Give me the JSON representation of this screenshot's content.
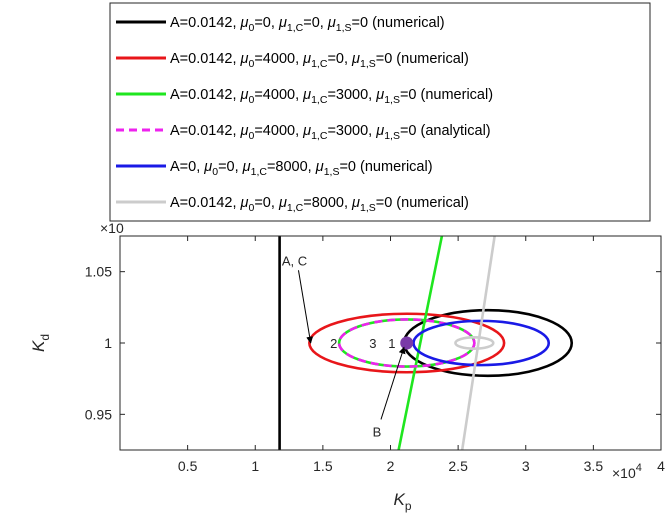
{
  "chart_data": {
    "type": "line",
    "xlabel": {
      "base": "K",
      "sub": "p"
    },
    "ylabel": {
      "base": "K",
      "sub": "d"
    },
    "xlim": [
      0,
      40000
    ],
    "ylim": [
      0.925,
      1.075
    ],
    "x_ticks": [
      5000,
      10000,
      15000,
      20000,
      25000,
      30000,
      35000,
      40000
    ],
    "x_tick_labels": [
      "0.5",
      "1",
      "1.5",
      "2",
      "2.5",
      "3",
      "3.5",
      "4"
    ],
    "y_ticks": [
      0.95,
      1.0,
      1.05
    ],
    "y_tick_labels": [
      "0.95",
      "1",
      "1.05"
    ],
    "x_exponent": {
      "base": "×10",
      "exp": "4"
    },
    "y_exponent": "×10",
    "grid": false,
    "legend_position": "top",
    "legend": [
      {
        "color": "#000000",
        "dashed": false,
        "parts": [
          {
            "t": "A=0.0142, "
          },
          {
            "t": "μ",
            "i": true
          },
          {
            "t": "0",
            "s": true
          },
          {
            "t": "=0, "
          },
          {
            "t": "μ",
            "i": true
          },
          {
            "t": "1,C",
            "s": true
          },
          {
            "t": "=0, "
          },
          {
            "t": "μ",
            "i": true
          },
          {
            "t": "1,S",
            "s": true
          },
          {
            "t": "=0 (numerical)"
          }
        ]
      },
      {
        "color": "#e8161a",
        "dashed": false,
        "parts": [
          {
            "t": "A=0.0142, "
          },
          {
            "t": "μ",
            "i": true
          },
          {
            "t": "0",
            "s": true
          },
          {
            "t": "=4000, "
          },
          {
            "t": "μ",
            "i": true
          },
          {
            "t": "1,C",
            "s": true
          },
          {
            "t": "=0, "
          },
          {
            "t": "μ",
            "i": true
          },
          {
            "t": "1,S",
            "s": true
          },
          {
            "t": "=0 (numerical)"
          }
        ]
      },
      {
        "color": "#1fe61f",
        "dashed": false,
        "parts": [
          {
            "t": "A=0.0142, "
          },
          {
            "t": "μ",
            "i": true
          },
          {
            "t": "0",
            "s": true
          },
          {
            "t": "=4000, "
          },
          {
            "t": "μ",
            "i": true
          },
          {
            "t": "1,C",
            "s": true
          },
          {
            "t": "=3000, "
          },
          {
            "t": "μ",
            "i": true
          },
          {
            "t": "1,S",
            "s": true
          },
          {
            "t": "=0 (numerical)"
          }
        ]
      },
      {
        "color": "#ee22ee",
        "dashed": true,
        "parts": [
          {
            "t": "A=0.0142, "
          },
          {
            "t": "μ",
            "i": true
          },
          {
            "t": "0",
            "s": true
          },
          {
            "t": "=4000, "
          },
          {
            "t": "μ",
            "i": true
          },
          {
            "t": "1,C",
            "s": true
          },
          {
            "t": "=3000, "
          },
          {
            "t": "μ",
            "i": true
          },
          {
            "t": "1,S",
            "s": true
          },
          {
            "t": "=0 (analytical)"
          }
        ]
      },
      {
        "color": "#1a1ae6",
        "dashed": false,
        "parts": [
          {
            "t": "A=0, "
          },
          {
            "t": "μ",
            "i": true
          },
          {
            "t": "0",
            "s": true
          },
          {
            "t": "=0, "
          },
          {
            "t": "μ",
            "i": true
          },
          {
            "t": "1,C",
            "s": true
          },
          {
            "t": "=8000, "
          },
          {
            "t": "μ",
            "i": true
          },
          {
            "t": "1,S",
            "s": true
          },
          {
            "t": "=0 (numerical)"
          }
        ]
      },
      {
        "color": "#cccccc",
        "dashed": false,
        "parts": [
          {
            "t": "A=0.0142, "
          },
          {
            "t": "μ",
            "i": true
          },
          {
            "t": "0",
            "s": true
          },
          {
            "t": "=0, "
          },
          {
            "t": "μ",
            "i": true
          },
          {
            "t": "1,C",
            "s": true
          },
          {
            "t": "=8000, "
          },
          {
            "t": "μ",
            "i": true
          },
          {
            "t": "1,S",
            "s": true
          },
          {
            "t": "=0 (numerical)"
          }
        ]
      }
    ],
    "series": [
      {
        "id": "black-vertical",
        "color": "#000000",
        "dashed": false,
        "x": [
          11800,
          11800
        ],
        "y": [
          0.925,
          1.075
        ]
      },
      {
        "id": "black-closed",
        "color": "#000000",
        "dashed": false,
        "ellipse": {
          "cx": 27200,
          "cy": 1.0,
          "rx": 6200,
          "ry": 0.023
        }
      },
      {
        "id": "red-closed",
        "color": "#e8161a",
        "dashed": false,
        "ellipse": {
          "cx": 21200,
          "cy": 1.0,
          "rx": 7200,
          "ry": 0.0205
        }
      },
      {
        "id": "green-line",
        "color": "#1fe61f",
        "dashed": false,
        "x": [
          20600,
          23800
        ],
        "y": [
          0.925,
          1.075
        ]
      },
      {
        "id": "green-closed",
        "color": "#1fe61f",
        "dashed": false,
        "ellipse": {
          "cx": 21200,
          "cy": 1.0,
          "rx": 5000,
          "ry": 0.0165
        }
      },
      {
        "id": "magenta-closed",
        "color": "#ee22ee",
        "dashed": true,
        "ellipse": {
          "cx": 21200,
          "cy": 1.0,
          "rx": 5000,
          "ry": 0.0165
        }
      },
      {
        "id": "blue-closed",
        "color": "#1a1ae6",
        "dashed": false,
        "ellipse": {
          "cx": 26700,
          "cy": 1.0,
          "rx": 5000,
          "ry": 0.0155
        }
      },
      {
        "id": "gray-line",
        "color": "#cccccc",
        "dashed": false,
        "x": [
          25300,
          27700
        ],
        "y": [
          0.925,
          1.075
        ]
      },
      {
        "id": "gray-closed",
        "color": "#cccccc",
        "dashed": false,
        "ellipse": {
          "cx": 26200,
          "cy": 1.0,
          "rx": 1400,
          "ry": 0.004
        }
      }
    ],
    "point": {
      "x": 21200,
      "y": 1.0,
      "color": "#7a3aa8"
    },
    "annotations": [
      {
        "text": "A, C",
        "x": 12900,
        "y": 1.058,
        "arrow_to": [
          14100,
          1.0
        ]
      },
      {
        "text": "2",
        "x": 15800,
        "y": 1.0
      },
      {
        "text": "3",
        "x": 18700,
        "y": 1.0
      },
      {
        "text": "1",
        "x": 20100,
        "y": 1.0
      },
      {
        "text": "B",
        "x": 19000,
        "y": 0.938,
        "arrow_to": [
          21000,
          0.997
        ]
      }
    ]
  }
}
